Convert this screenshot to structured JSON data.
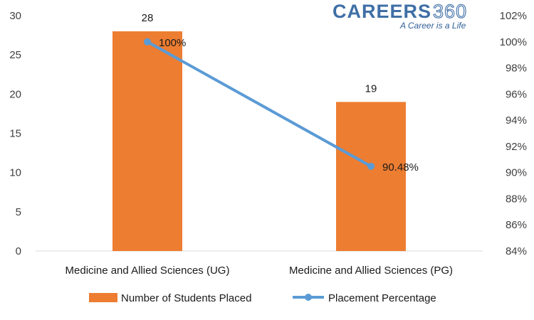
{
  "chart_data": {
    "type": "bar+line",
    "categories": [
      "Medicine and Allied Sciences (UG)",
      "Medicine and Allied Sciences (PG)"
    ],
    "series": [
      {
        "name": "Number of Students Placed",
        "type": "bar",
        "axis": "left",
        "color": "#ed7d31",
        "values": [
          28,
          19
        ],
        "labels": [
          "28",
          "19"
        ]
      },
      {
        "name": "Placement Percentage",
        "type": "line",
        "axis": "right",
        "color": "#5b9bd5",
        "values": [
          100,
          90.48
        ],
        "labels": [
          "100%",
          "90.48%"
        ]
      }
    ],
    "y_left": {
      "min": 0,
      "max": 30,
      "step": 5,
      "ticks": [
        "0",
        "5",
        "10",
        "15",
        "20",
        "25",
        "30"
      ]
    },
    "y_right": {
      "min": 84,
      "max": 102,
      "step": 2,
      "ticks": [
        "84%",
        "86%",
        "88%",
        "90%",
        "92%",
        "94%",
        "96%",
        "98%",
        "100%",
        "102%"
      ]
    },
    "grid": false,
    "legend_position": "bottom"
  },
  "logo": {
    "brand": "CAREERS",
    "number": "360",
    "tagline": "A Career is a Life"
  }
}
